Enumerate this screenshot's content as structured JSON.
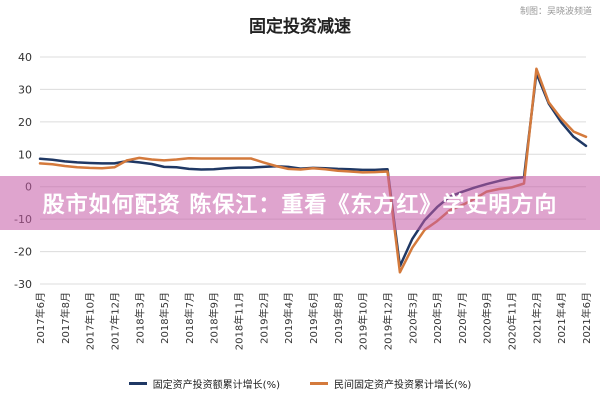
{
  "watermark": "制图：吴晓波频道",
  "banner": "股市如何配资 陈保江：重看《东方红》学史明方向",
  "colors": {
    "fixed_investment": "#1f3864",
    "private_investment": "#d47a3c"
  },
  "chart_data": {
    "type": "line",
    "title": "固定投资减速",
    "ylim": [
      -30,
      40
    ],
    "yticks": [
      40,
      30,
      20,
      10,
      0,
      -10,
      -20,
      -30
    ],
    "grid": true,
    "legend_position": "bottom",
    "x": [
      "2017年6月",
      "2017年7月",
      "2017年8月",
      "2017年9月",
      "2017年10月",
      "2017年11月",
      "2017年12月",
      "2018年2月",
      "2018年3月",
      "2018年4月",
      "2018年5月",
      "2018年6月",
      "2018年7月",
      "2018年8月",
      "2018年9月",
      "2018年10月",
      "2018年11月",
      "2018年12月",
      "2019年2月",
      "2019年3月",
      "2019年4月",
      "2019年5月",
      "2019年6月",
      "2019年7月",
      "2019年8月",
      "2019年9月",
      "2019年10月",
      "2019年11月",
      "2019年12月",
      "2020年2月",
      "2020年3月",
      "2020年4月",
      "2020年5月",
      "2020年6月",
      "2020年7月",
      "2020年8月",
      "2020年9月",
      "2020年10月",
      "2020年11月",
      "2020年12月",
      "2021年2月",
      "2021年3月",
      "2021年4月",
      "2021年5月",
      "2021年6月"
    ],
    "xtick_labels": [
      "2017年6月",
      "2017年8月",
      "2017年10月",
      "2017年12月",
      "2018年3月",
      "2018年5月",
      "2018年7月",
      "2018年9月",
      "2018年11月",
      "2019年2月",
      "2019年4月",
      "2019年6月",
      "2019年8月",
      "2019年10月",
      "2019年12月",
      "2020年3月",
      "2020年5月",
      "2020年7月",
      "2020年9月",
      "2020年11月",
      "2021年2月",
      "2021年4月",
      "2021年6月"
    ],
    "series": [
      {
        "name": "固定资产投资额累计增长(%)",
        "color": "#1f3864",
        "values": [
          8.6,
          8.3,
          7.8,
          7.5,
          7.3,
          7.2,
          7.2,
          7.9,
          7.5,
          7.0,
          6.1,
          6.0,
          5.5,
          5.3,
          5.4,
          5.7,
          5.9,
          5.9,
          6.1,
          6.3,
          6.1,
          5.6,
          5.8,
          5.7,
          5.5,
          5.4,
          5.2,
          5.2,
          5.4,
          -24.5,
          -16.1,
          -10.3,
          -6.3,
          -3.1,
          -1.6,
          -0.3,
          0.8,
          1.8,
          2.6,
          2.9,
          35.0,
          25.6,
          19.9,
          15.4,
          12.6
        ]
      },
      {
        "name": "民间固定资产投资累计增长(%)",
        "color": "#d47a3c",
        "values": [
          7.2,
          6.9,
          6.4,
          6.0,
          5.8,
          5.7,
          6.0,
          8.1,
          8.9,
          8.4,
          8.1,
          8.4,
          8.8,
          8.7,
          8.7,
          8.7,
          8.7,
          8.7,
          7.5,
          6.4,
          5.5,
          5.3,
          5.7,
          5.4,
          4.9,
          4.7,
          4.4,
          4.5,
          4.7,
          -26.4,
          -18.8,
          -13.3,
          -10.6,
          -7.3,
          -5.7,
          -3.8,
          -1.5,
          -0.7,
          -0.2,
          1.0,
          36.4,
          26.0,
          21.0,
          17.0,
          15.4
        ]
      }
    ]
  }
}
